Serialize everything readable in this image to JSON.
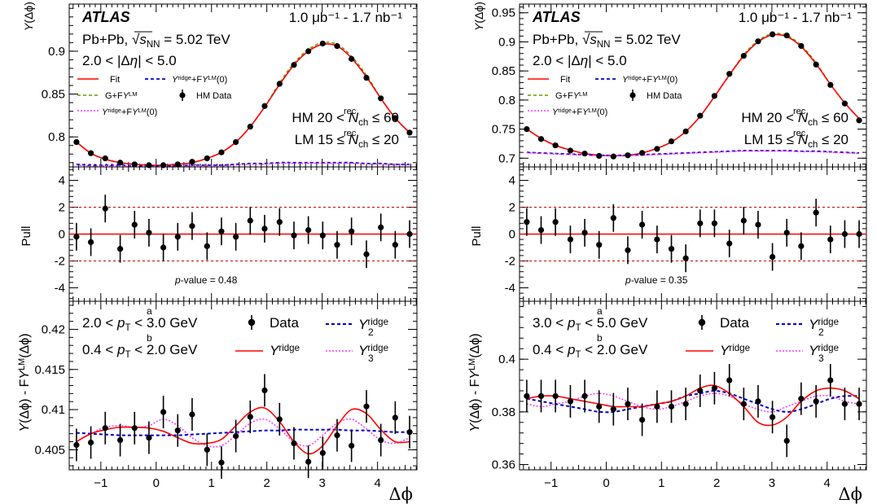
{
  "panels_meta": [
    {
      "atlas": "ATLAS",
      "lumi": "1.0 μb⁻¹ - 1.7 nb⁻¹",
      "system": "Pb+Pb,",
      "energy": "√sNN = 5.02 TeV",
      "deta": "2.0 < |Δη| < 5.0",
      "hm": "HM 20 < N_ch^rec ≤ 60",
      "lm": "LM 15 ≤ N_ch^rec ≤ 20",
      "pvalue": "p-value = 0.48",
      "pta": "2.0 < p_T^a < 3.0 GeV",
      "ptb": "0.4 < p_T^b < 2.0 GeV"
    },
    {
      "atlas": "ATLAS",
      "lumi": "1.0 μb⁻¹ - 1.7 nb⁻¹",
      "system": "Pb+Pb,",
      "energy": "√sNN = 5.02 TeV",
      "deta": "2.0 < |Δη| < 5.0",
      "hm": "HM 20 < N_ch^rec ≤ 60",
      "lm": "LM 15 ≤ N_ch^rec ≤ 20",
      "pvalue": "p-value = 0.35",
      "pta": "3.0 < p_T^a < 5.0 GeV",
      "ptb": "0.4 < p_T^b < 2.0 GeV"
    }
  ],
  "labels": {
    "top_ylabel": "Y(Δϕ)",
    "mid_ylabel": "Pull",
    "bot_ylabel": "Y(Δϕ) - FY^LM(Δϕ)",
    "xlabel": "Δϕ",
    "legend_top": [
      "Fit",
      "Y_2^ridge+FY^LM(0)",
      "G+FY^LM",
      "HM Data",
      "Y_3^ridge+FY^LM(0)"
    ],
    "legend_bot": [
      "Data",
      "Y_2^ridge",
      "Y^ridge",
      "Y_3^ridge"
    ]
  },
  "colors": {
    "fit": "#ff0000",
    "y2": "#0000cc",
    "g": "#669900",
    "y3": "#ff33ff",
    "data": "#000000",
    "pull_ref": "#cc0000"
  },
  "chart_data": [
    {
      "type": "scatter",
      "panel": "left-top",
      "xlim": [
        -1.571,
        4.712
      ],
      "ylim": [
        0.765,
        0.955
      ],
      "yticks": [
        0.8,
        0.85,
        0.9
      ],
      "x": [
        -1.44,
        -1.18,
        -0.92,
        -0.65,
        -0.39,
        -0.13,
        0.13,
        0.39,
        0.65,
        0.92,
        1.18,
        1.44,
        1.7,
        1.96,
        2.23,
        2.49,
        2.75,
        3.01,
        3.27,
        3.53,
        3.8,
        4.06,
        4.32,
        4.58
      ],
      "series": [
        {
          "name": "HM Data",
          "values": [
            0.794,
            0.781,
            0.775,
            0.77,
            0.768,
            0.767,
            0.767,
            0.768,
            0.771,
            0.775,
            0.782,
            0.794,
            0.812,
            0.836,
            0.862,
            0.884,
            0.9,
            0.909,
            0.906,
            0.891,
            0.869,
            0.845,
            0.822,
            0.805
          ]
        },
        {
          "name": "Fit",
          "values": [
            0.794,
            0.781,
            0.774,
            0.77,
            0.768,
            0.767,
            0.767,
            0.768,
            0.77,
            0.775,
            0.782,
            0.794,
            0.812,
            0.835,
            0.861,
            0.884,
            0.9,
            0.908,
            0.906,
            0.892,
            0.87,
            0.845,
            0.822,
            0.805
          ]
        },
        {
          "name": "Y_2^ridge+FY^LM(0)",
          "values": [
            0.768,
            0.767,
            0.767,
            0.767,
            0.766,
            0.766,
            0.766,
            0.766,
            0.767,
            0.767,
            0.767,
            0.768,
            0.769,
            0.769,
            0.77,
            0.77,
            0.77,
            0.77,
            0.77,
            0.77,
            0.769,
            0.769,
            0.768,
            0.768
          ]
        }
      ]
    },
    {
      "type": "scatter",
      "panel": "left-pull",
      "xlim": [
        -1.571,
        4.712
      ],
      "ylim": [
        -5,
        5
      ],
      "yticks": [
        -4,
        -2,
        0,
        2,
        4
      ],
      "x": [
        -1.44,
        -1.18,
        -0.92,
        -0.65,
        -0.39,
        -0.13,
        0.13,
        0.39,
        0.65,
        0.92,
        1.18,
        1.44,
        1.7,
        1.96,
        2.23,
        2.49,
        2.75,
        3.01,
        3.27,
        3.53,
        3.8,
        4.06,
        4.32,
        4.58
      ],
      "values": [
        -0.2,
        -0.6,
        1.9,
        -1.1,
        0.7,
        0.1,
        -1.0,
        -0.2,
        0.6,
        -0.9,
        0.2,
        -0.2,
        1.0,
        0.4,
        0.9,
        -0.1,
        0.3,
        -0.1,
        -0.8,
        0.2,
        -1.5,
        0.5,
        -0.8,
        0.0
      ]
    },
    {
      "type": "scatter",
      "panel": "left-bottom",
      "xlim": [
        -1.571,
        4.712
      ],
      "ylim": [
        0.4025,
        0.4235
      ],
      "yticks": [
        0.405,
        0.41,
        0.415,
        0.42
      ],
      "x": [
        -1.44,
        -1.18,
        -0.92,
        -0.65,
        -0.39,
        -0.13,
        0.13,
        0.39,
        0.65,
        0.92,
        1.18,
        1.44,
        1.7,
        1.96,
        2.23,
        2.49,
        2.75,
        3.01,
        3.27,
        3.53,
        3.8,
        4.06,
        4.32,
        4.58
      ],
      "series": [
        {
          "name": "Data",
          "values": [
            0.4056,
            0.4059,
            0.4077,
            0.4062,
            0.4077,
            0.4065,
            0.4097,
            0.4074,
            0.4094,
            0.405,
            0.4034,
            0.4067,
            0.4091,
            0.4124,
            0.4088,
            0.4058,
            0.4035,
            0.4046,
            0.4068,
            0.4055,
            0.4104,
            0.4062,
            0.409,
            0.4072
          ]
        },
        {
          "name": "Y^ridge",
          "values": [
            0.406,
            0.407,
            0.4075,
            0.4078,
            0.4078,
            0.4077,
            0.4073,
            0.4065,
            0.4058,
            0.4058,
            0.4063,
            0.408,
            0.4097,
            0.4102,
            0.4085,
            0.406,
            0.4045,
            0.4055,
            0.408,
            0.41,
            0.4095,
            0.4075,
            0.406,
            0.406
          ]
        },
        {
          "name": "Y_2^ridge",
          "values": [
            0.4071,
            0.407,
            0.4069,
            0.4068,
            0.4068,
            0.4068,
            0.4068,
            0.4068,
            0.4069,
            0.407,
            0.4071,
            0.4072,
            0.4073,
            0.4074,
            0.4074,
            0.4075,
            0.4075,
            0.4075,
            0.4075,
            0.4074,
            0.4074,
            0.4073,
            0.4072,
            0.4072
          ]
        },
        {
          "name": "Y_3^ridge",
          "values": [
            0.406,
            0.407,
            0.4078,
            0.408,
            0.4078,
            0.408,
            0.4088,
            0.408,
            0.4065,
            0.4055,
            0.4055,
            0.4068,
            0.4083,
            0.4088,
            0.4076,
            0.406,
            0.4055,
            0.4068,
            0.4083,
            0.4088,
            0.4076,
            0.4062,
            0.4058,
            0.4065
          ]
        }
      ]
    },
    {
      "type": "scatter",
      "panel": "right-top",
      "xlim": [
        -1.571,
        4.712
      ],
      "ylim": [
        0.685,
        0.965
      ],
      "yticks": [
        0.7,
        0.75,
        0.8,
        0.85,
        0.9,
        0.95
      ],
      "x": [
        -1.44,
        -1.18,
        -0.92,
        -0.65,
        -0.39,
        -0.13,
        0.13,
        0.39,
        0.65,
        0.92,
        1.18,
        1.44,
        1.7,
        1.96,
        2.23,
        2.49,
        2.75,
        3.01,
        3.27,
        3.53,
        3.8,
        4.06,
        4.32,
        4.58
      ],
      "series": [
        {
          "name": "HM Data",
          "values": [
            0.75,
            0.733,
            0.722,
            0.713,
            0.708,
            0.704,
            0.703,
            0.705,
            0.709,
            0.716,
            0.729,
            0.746,
            0.773,
            0.807,
            0.845,
            0.876,
            0.901,
            0.913,
            0.911,
            0.893,
            0.861,
            0.826,
            0.794,
            0.765
          ]
        },
        {
          "name": "Fit",
          "values": [
            0.75,
            0.734,
            0.722,
            0.714,
            0.708,
            0.705,
            0.704,
            0.705,
            0.709,
            0.717,
            0.728,
            0.746,
            0.772,
            0.806,
            0.843,
            0.876,
            0.9,
            0.912,
            0.909,
            0.892,
            0.862,
            0.827,
            0.795,
            0.768
          ]
        },
        {
          "name": "Y_2^ridge+FY^LM(0)",
          "values": [
            0.71,
            0.709,
            0.708,
            0.707,
            0.706,
            0.705,
            0.705,
            0.705,
            0.706,
            0.707,
            0.708,
            0.709,
            0.71,
            0.711,
            0.712,
            0.713,
            0.713,
            0.713,
            0.713,
            0.712,
            0.712,
            0.711,
            0.71,
            0.709
          ]
        }
      ]
    },
    {
      "type": "scatter",
      "panel": "right-pull",
      "xlim": [
        -1.571,
        4.712
      ],
      "ylim": [
        -5,
        5
      ],
      "yticks": [
        -4,
        -2,
        0,
        2,
        4
      ],
      "x": [
        -1.44,
        -1.18,
        -0.92,
        -0.65,
        -0.39,
        -0.13,
        0.13,
        0.39,
        0.65,
        0.92,
        1.18,
        1.44,
        1.7,
        1.96,
        2.23,
        2.49,
        2.75,
        3.01,
        3.27,
        3.53,
        3.8,
        4.06,
        4.32,
        4.58
      ],
      "values": [
        0.9,
        0.3,
        0.9,
        -0.4,
        0.1,
        -0.8,
        1.2,
        -1.2,
        0.7,
        -0.4,
        -1.1,
        -1.8,
        0.8,
        0.8,
        -0.7,
        1.0,
        0.7,
        -1.7,
        0.1,
        -0.9,
        1.6,
        -0.4,
        0.0,
        0.0
      ]
    },
    {
      "type": "scatter",
      "panel": "right-bottom",
      "xlim": [
        -1.571,
        4.712
      ],
      "ylim": [
        0.358,
        0.422
      ],
      "yticks": [
        0.36,
        0.38,
        0.4
      ],
      "x": [
        -1.44,
        -1.18,
        -0.92,
        -0.65,
        -0.39,
        -0.13,
        0.13,
        0.39,
        0.65,
        0.92,
        1.18,
        1.44,
        1.7,
        1.96,
        2.23,
        2.49,
        2.75,
        3.01,
        3.27,
        3.53,
        3.8,
        4.06,
        4.32,
        4.58
      ],
      "series": [
        {
          "name": "Data",
          "values": [
            0.386,
            0.386,
            0.386,
            0.384,
            0.386,
            0.382,
            0.381,
            0.383,
            0.377,
            0.382,
            0.382,
            0.383,
            0.388,
            0.389,
            0.392,
            0.383,
            0.384,
            0.378,
            0.369,
            0.385,
            0.384,
            0.392,
            0.383,
            0.383
          ]
        },
        {
          "name": "Y^ridge",
          "values": [
            0.385,
            0.386,
            0.386,
            0.385,
            0.384,
            0.383,
            0.382,
            0.382,
            0.382,
            0.383,
            0.384,
            0.386,
            0.389,
            0.39,
            0.387,
            0.382,
            0.376,
            0.375,
            0.378,
            0.384,
            0.388,
            0.389,
            0.388,
            0.385
          ]
        },
        {
          "name": "Y_2^ridge",
          "values": [
            0.385,
            0.384,
            0.383,
            0.382,
            0.381,
            0.38,
            0.38,
            0.381,
            0.382,
            0.383,
            0.384,
            0.386,
            0.387,
            0.388,
            0.387,
            0.385,
            0.383,
            0.381,
            0.38,
            0.381,
            0.383,
            0.385,
            0.386,
            0.386
          ]
        },
        {
          "name": "Y_3^ridge",
          "values": [
            0.383,
            0.382,
            0.383,
            0.384,
            0.386,
            0.387,
            0.386,
            0.384,
            0.382,
            0.381,
            0.382,
            0.384,
            0.386,
            0.387,
            0.386,
            0.383,
            0.381,
            0.38,
            0.382,
            0.384,
            0.386,
            0.386,
            0.384,
            0.383
          ]
        }
      ]
    }
  ]
}
